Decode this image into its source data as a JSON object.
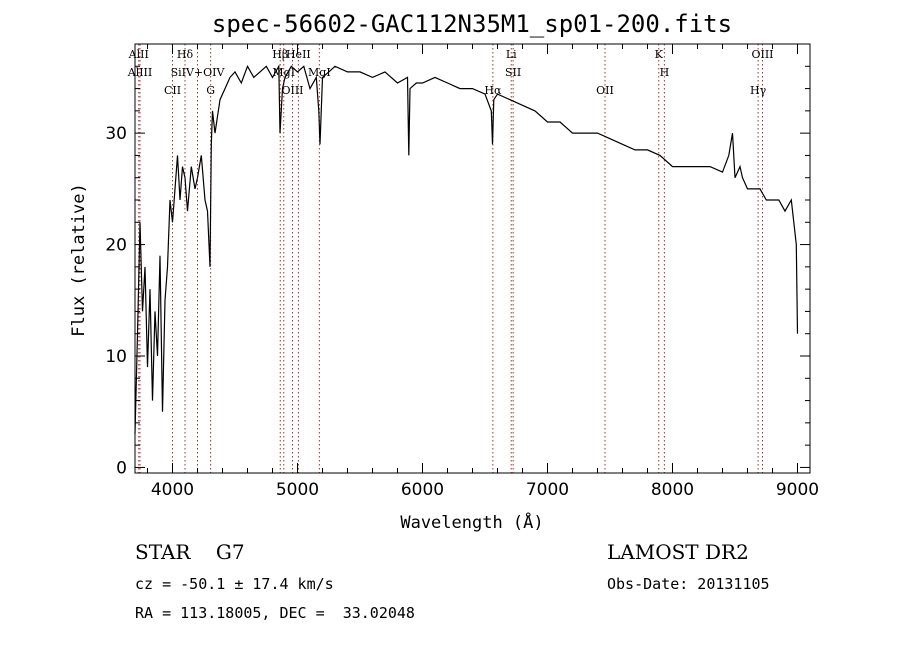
{
  "chart_data": {
    "type": "line",
    "title": "spec-56602-GAC112N35M1_sp01-200.fits",
    "xlabel": "Wavelength (Å)",
    "ylabel": "Flux (relative)",
    "xlim": [
      3700,
      9100
    ],
    "ylim": [
      -0.5,
      38
    ],
    "x_ticks": [
      4000,
      5000,
      6000,
      7000,
      8000,
      9000
    ],
    "y_ticks": [
      0,
      10,
      20,
      30
    ],
    "x_tick_labels": [
      "4000",
      "5000",
      "6000",
      "7000",
      "8000",
      "9000"
    ],
    "y_tick_labels": [
      "0",
      "10",
      "20",
      "30"
    ],
    "series": [
      {
        "x": [
          3700,
          3720,
          3740,
          3760,
          3780,
          3800,
          3820,
          3840,
          3860,
          3880,
          3900,
          3920,
          3940,
          3960,
          3980,
          4000,
          4020,
          4040,
          4060,
          4080,
          4100,
          4120,
          4150,
          4180,
          4200,
          4230,
          4260,
          4280,
          4300,
          4310,
          4320,
          4340,
          4380,
          4420,
          4460,
          4500,
          4550,
          4600,
          4650,
          4700,
          4750,
          4800,
          4850,
          4860,
          4880,
          4900,
          4950,
          5000,
          5050,
          5100,
          5150,
          5170,
          5180,
          5200,
          5250,
          5300,
          5400,
          5500,
          5600,
          5700,
          5800,
          5880,
          5890,
          5900,
          5950,
          6000,
          6100,
          6200,
          6300,
          6400,
          6500,
          6550,
          6560,
          6570,
          6600,
          6700,
          6800,
          6900,
          7000,
          7100,
          7200,
          7300,
          7400,
          7500,
          7600,
          7700,
          7800,
          7900,
          8000,
          8100,
          8200,
          8300,
          8400,
          8450,
          8480,
          8500,
          8540,
          8560,
          8600,
          8650,
          8700,
          8750,
          8800,
          8850,
          8900,
          8950,
          8990,
          9000
        ],
        "y": [
          3,
          12,
          22,
          14,
          18,
          9,
          16,
          6,
          14,
          10,
          19,
          5,
          15,
          18,
          24,
          22,
          25,
          28,
          24,
          27,
          26,
          23,
          27,
          25,
          26,
          28,
          24,
          23,
          18,
          29,
          32,
          30,
          33,
          34,
          35,
          35.5,
          34.5,
          36,
          35,
          35.5,
          36,
          35,
          36,
          30,
          34,
          35,
          36,
          35.5,
          36,
          34,
          35,
          32,
          29,
          35,
          35.5,
          36,
          35.5,
          35.5,
          35,
          35.5,
          34.5,
          35,
          28,
          34,
          34.5,
          34.5,
          35,
          34.5,
          34,
          34,
          33.5,
          32,
          29,
          33,
          33.5,
          33,
          32.5,
          32,
          31,
          31,
          30,
          30,
          30,
          29.5,
          29,
          28.5,
          28.5,
          28,
          27,
          27,
          27,
          27,
          26.5,
          28,
          30,
          26,
          27,
          26,
          25,
          25,
          25,
          24,
          24,
          24,
          23,
          24,
          20,
          12
        ]
      }
    ],
    "lines": [
      {
        "x": 3730,
        "label": "AlII"
      },
      {
        "x": 3740,
        "label": "AlIII"
      },
      {
        "x": 4000,
        "label": "CII"
      },
      {
        "x": 4100,
        "label": "Hδ"
      },
      {
        "x": 4200,
        "label": "SiIV+OIV"
      },
      {
        "x": 4305,
        "label": "G"
      },
      {
        "x": 4862,
        "label": "Hβ"
      },
      {
        "x": 4890,
        "label": "MgI"
      },
      {
        "x": 4960,
        "label": "OIII"
      },
      {
        "x": 5007,
        "label": "HeII"
      },
      {
        "x": 5175,
        "label": "MgI"
      },
      {
        "x": 6563,
        "label": "Hα"
      },
      {
        "x": 6710,
        "label": "Li"
      },
      {
        "x": 6725,
        "label": "SII"
      },
      {
        "x": 7460,
        "label": "OII"
      },
      {
        "x": 7890,
        "label": "K"
      },
      {
        "x": 7935,
        "label": "H"
      },
      {
        "x": 8685,
        "label": "Hγ"
      },
      {
        "x": 8720,
        "label": "OIII"
      }
    ]
  },
  "info": {
    "star_class": "STAR    G7",
    "survey": "LAMOST DR2",
    "cz": "cz = -50.1 ± 17.4 km/s",
    "obs_date": "Obs-Date: 20131105",
    "coords": "RA = 113.18005, DEC =  33.02048"
  }
}
